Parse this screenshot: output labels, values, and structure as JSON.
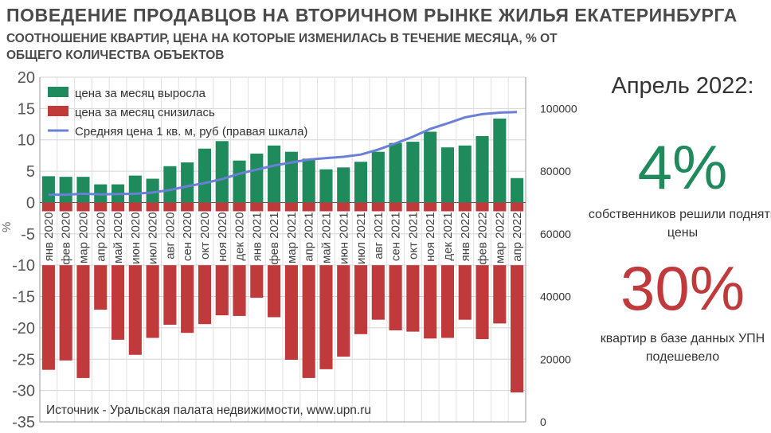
{
  "title": "ПОВЕДЕНИЕ ПРОДАВЦОВ НА ВТОРИЧНОМ РЫНКЕ ЖИЛЬЯ ЕКАТЕРИНБУРГА",
  "subtitle": "СООТНОШЕНИЕ КВАРТИР, ЦЕНА НА КОТОРЫЕ ИЗМЕНИЛАСЬ В ТЕЧЕНИЕ МЕСЯЦА, % ОТ ОБЩЕГО КОЛИЧЕСТВА ОБЪЕКТОВ",
  "source": "Источник - Уральская палата недвижимости, www.upn.ru",
  "side_panel": {
    "period": "Апрель 2022:",
    "stat1_value": "4%",
    "stat1_caption": "собственников решили поднять цены",
    "stat2_value": "30%",
    "stat2_caption": "квартир в базе данных УПН подешевело"
  },
  "colors": {
    "rise": "#1f8a5b",
    "fall": "#c0393b",
    "avg_price": "#6a7fd6",
    "title": "#4a4a4a"
  },
  "chart_data": {
    "type": "bar",
    "ylabel": "%",
    "y2label": "",
    "ylim": [
      -35,
      20
    ],
    "yticks": [
      20,
      15,
      10,
      5,
      0,
      -5,
      -10,
      -15,
      -20,
      -25,
      -30,
      -35
    ],
    "y2lim": [
      0,
      110000
    ],
    "y2ticks": [
      0,
      20000,
      40000,
      60000,
      80000,
      100000
    ],
    "grid": true,
    "legend": "top-left",
    "categories": [
      "янв 2020",
      "фев 2020",
      "мар 2020",
      "апр 2020",
      "май 2020",
      "июн 2020",
      "июл 2020",
      "авг 2020",
      "сен 2020",
      "окт 2020",
      "ноя 2020",
      "дек 2020",
      "янв 2021",
      "фев 2021",
      "мар 2021",
      "апр 2021",
      "май 2021",
      "июн 2021",
      "июл 2021",
      "авг 2021",
      "сен 2021",
      "окт 2021",
      "ноя 2021",
      "дек 2021",
      "янв 2022",
      "фев 2022",
      "мар 2022",
      "апр 2022"
    ],
    "series": [
      {
        "name": "цена за месяц выросла",
        "kind": "bar",
        "axis": "left",
        "values": [
          4.2,
          4.1,
          4.1,
          2.9,
          2.9,
          4.3,
          3.8,
          5.8,
          6.4,
          8.6,
          9.8,
          6.7,
          7.8,
          9.1,
          8.1,
          7.0,
          5.3,
          5.6,
          6.5,
          8.1,
          9.5,
          9.7,
          11.3,
          8.8,
          9.1,
          10.6,
          13.4,
          3.9
        ]
      },
      {
        "name": "цена за месяц снизилась",
        "kind": "bar",
        "axis": "left",
        "values": [
          -26.7,
          -25.2,
          -28.0,
          -17.1,
          -21.9,
          -24.3,
          -21.6,
          -19.5,
          -20.8,
          -19.4,
          -18.0,
          -18.1,
          -15.2,
          -18.3,
          -25.1,
          -28.0,
          -26.6,
          -24.6,
          -21.0,
          -18.7,
          -20.4,
          -20.6,
          -21.7,
          -21.6,
          -18.7,
          -21.8,
          -19.3,
          -30.3
        ]
      },
      {
        "name": "Средняя цена 1 кв. м, руб (правая шкала)",
        "kind": "line",
        "axis": "right",
        "values": [
          72500,
          72500,
          72800,
          72600,
          72700,
          72800,
          73200,
          74000,
          75200,
          76200,
          77500,
          79200,
          80500,
          81800,
          82800,
          83700,
          84200,
          84600,
          85300,
          86900,
          88900,
          91000,
          93500,
          95300,
          97200,
          98200,
          98700,
          98900
        ]
      }
    ]
  }
}
